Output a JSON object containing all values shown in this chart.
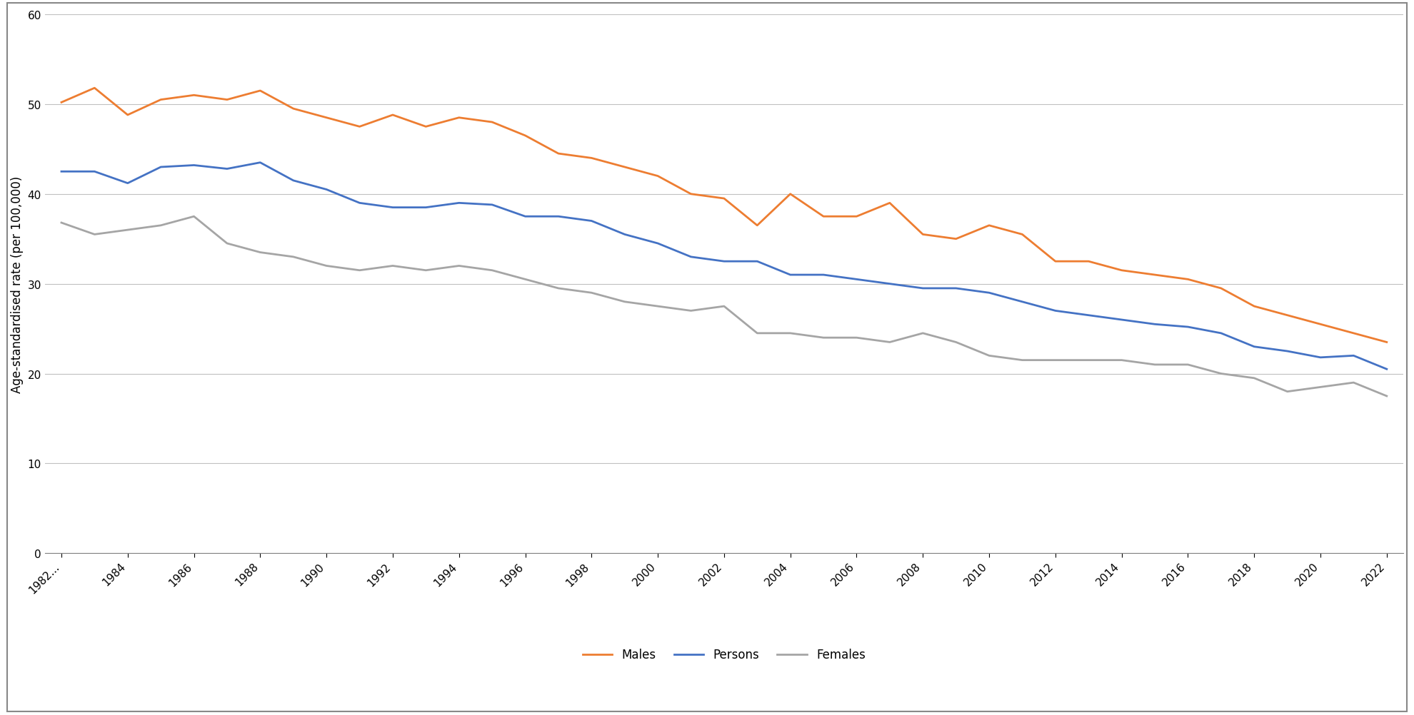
{
  "years": [
    1982,
    1983,
    1984,
    1985,
    1986,
    1987,
    1988,
    1989,
    1990,
    1991,
    1992,
    1993,
    1994,
    1995,
    1996,
    1997,
    1998,
    1999,
    2000,
    2001,
    2002,
    2003,
    2004,
    2005,
    2006,
    2007,
    2008,
    2009,
    2010,
    2011,
    2012,
    2013,
    2014,
    2015,
    2016,
    2017,
    2018,
    2019,
    2020,
    2021,
    2022
  ],
  "persons": [
    42.5,
    42.5,
    41.2,
    43.0,
    43.2,
    42.8,
    43.5,
    41.5,
    40.5,
    39.0,
    38.5,
    38.5,
    39.0,
    38.8,
    37.5,
    37.5,
    37.0,
    35.5,
    34.5,
    33.0,
    32.5,
    32.5,
    31.0,
    31.0,
    30.5,
    30.0,
    29.5,
    29.5,
    29.0,
    28.0,
    27.0,
    26.5,
    26.0,
    25.5,
    25.2,
    24.5,
    23.0,
    22.5,
    21.8,
    22.0,
    20.5
  ],
  "males": [
    50.2,
    51.8,
    48.8,
    50.5,
    51.0,
    50.5,
    51.5,
    49.5,
    48.5,
    47.5,
    48.8,
    47.5,
    48.5,
    48.0,
    46.5,
    44.5,
    44.0,
    43.0,
    42.0,
    40.0,
    39.5,
    36.5,
    40.0,
    37.5,
    37.5,
    39.0,
    35.5,
    35.0,
    36.5,
    35.5,
    32.5,
    32.5,
    31.5,
    31.0,
    30.5,
    29.5,
    27.5,
    26.5,
    25.5,
    24.5,
    23.5
  ],
  "females": [
    36.8,
    35.5,
    36.0,
    36.5,
    37.5,
    34.5,
    33.5,
    33.0,
    32.0,
    31.5,
    32.0,
    31.5,
    32.0,
    31.5,
    30.5,
    29.5,
    29.0,
    28.0,
    27.5,
    27.0,
    27.5,
    24.5,
    24.5,
    24.0,
    24.0,
    23.5,
    24.5,
    23.5,
    22.0,
    21.5,
    21.5,
    21.5,
    21.5,
    21.0,
    21.0,
    20.0,
    19.5,
    18.0,
    18.5,
    19.0,
    17.5
  ],
  "persons_color": "#4472C4",
  "males_color": "#ED7D31",
  "females_color": "#A5A5A5",
  "ylabel": "Age-standardised rate (per 100,000)",
  "ylim": [
    0,
    60
  ],
  "yticks": [
    0,
    10,
    20,
    30,
    40,
    50,
    60
  ],
  "xtick_labels": [
    "1982...",
    "1984",
    "1986",
    "1988",
    "1990",
    "1992",
    "1994",
    "1996",
    "1998",
    "2000",
    "2002",
    "2004",
    "2006",
    "2008",
    "2010",
    "2012",
    "2014",
    "2016",
    "2018",
    "2020",
    "2022"
  ],
  "xtick_years": [
    1982,
    1984,
    1986,
    1988,
    1990,
    1992,
    1994,
    1996,
    1998,
    2000,
    2002,
    2004,
    2006,
    2008,
    2010,
    2012,
    2014,
    2016,
    2018,
    2020,
    2022
  ],
  "legend_labels": [
    "Persons",
    "Males",
    "Females"
  ],
  "background_color": "#ffffff",
  "line_width": 2.0,
  "axis_fontsize": 12,
  "tick_fontsize": 11,
  "legend_fontsize": 12,
  "border_color": "#888888"
}
